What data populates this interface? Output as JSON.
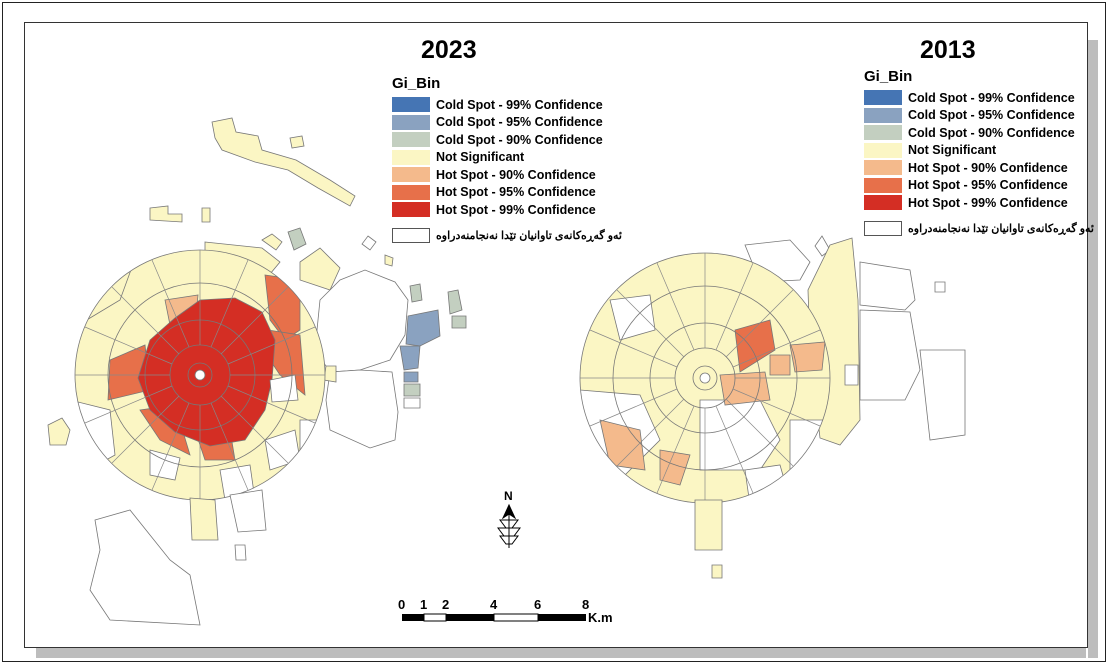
{
  "maps": [
    {
      "title": "2023"
    },
    {
      "title": "2013"
    }
  ],
  "legend": {
    "title": "Gi_Bin",
    "items": [
      {
        "label": "Cold Spot - 99% Confidence",
        "color": "#4575b4"
      },
      {
        "label": "Cold Spot - 95% Confidence",
        "color": "#8aa2c0"
      },
      {
        "label": "Cold Spot - 90% Confidence",
        "color": "#c3cfc0"
      },
      {
        "label": "Not Significant",
        "color": "#fbf6c4"
      },
      {
        "label": "Hot Spot - 90% Confidence",
        "color": "#f4ba8c"
      },
      {
        "label": "Hot Spot - 95% Confidence",
        "color": "#e7704a"
      },
      {
        "label": "Hot Spot - 99% Confidence",
        "color": "#d42e24"
      }
    ],
    "no_data_label": "ئەو گەڕەکانەی تاوانیان تێدا نەنجامنەدراوە"
  },
  "north_arrow": {
    "label": "N"
  },
  "scale_bar": {
    "ticks": [
      "0",
      "1",
      "2",
      "4",
      "6",
      "8"
    ],
    "unit": "K.m"
  }
}
